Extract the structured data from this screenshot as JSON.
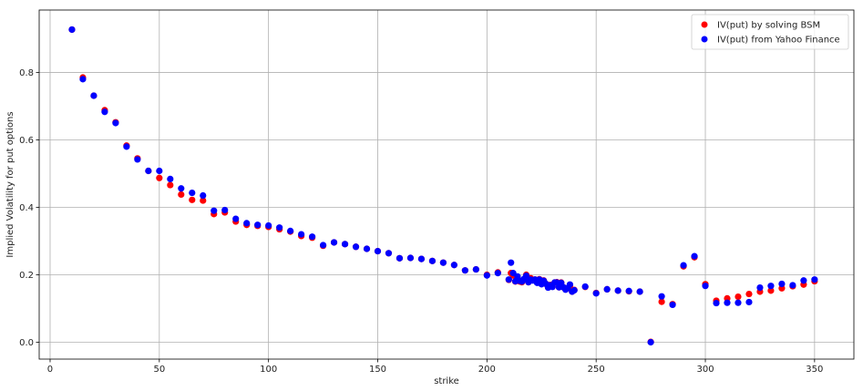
{
  "chart_data": {
    "type": "scatter",
    "title": "",
    "xlabel": "strike",
    "ylabel": "Implied Volatility for put options",
    "xlim": [
      -5,
      368
    ],
    "ylim": [
      -0.05,
      0.985
    ],
    "xticks": [
      0,
      50,
      100,
      150,
      200,
      250,
      300,
      350
    ],
    "yticks": [
      0.0,
      0.2,
      0.4,
      0.6,
      0.8
    ],
    "ytick_labels": [
      "0.0",
      "0.2",
      "0.4",
      "0.6",
      "0.8"
    ],
    "grid": true,
    "legend_position": "top-right",
    "series": [
      {
        "name": "IV(put) by solving BSM",
        "color": "#ff0000",
        "x": [
          10,
          15,
          20,
          25,
          30,
          35,
          40,
          45,
          50,
          55,
          60,
          65,
          70,
          75,
          80,
          85,
          90,
          95,
          100,
          105,
          110,
          115,
          120,
          125,
          130,
          135,
          140,
          145,
          150,
          155,
          160,
          165,
          170,
          175,
          180,
          185,
          190,
          195,
          200,
          205,
          210,
          211,
          212,
          213,
          214,
          215,
          216,
          217,
          218,
          219,
          220,
          221,
          222,
          223,
          224,
          225,
          226,
          227,
          228,
          229,
          230,
          231,
          232,
          233,
          234,
          235,
          236,
          237,
          238,
          239,
          240,
          245,
          250,
          255,
          260,
          265,
          270,
          275,
          280,
          285,
          290,
          295,
          300,
          305,
          310,
          315,
          320,
          325,
          330,
          335,
          340,
          345,
          350
        ],
        "y": [
          0.927,
          0.785,
          0.731,
          0.688,
          0.652,
          0.583,
          0.545,
          0.508,
          0.487,
          0.466,
          0.438,
          0.422,
          0.42,
          0.38,
          0.385,
          0.358,
          0.348,
          0.345,
          0.342,
          0.335,
          0.328,
          0.315,
          0.31,
          0.286,
          0.296,
          0.291,
          0.283,
          0.277,
          0.27,
          0.264,
          0.249,
          0.25,
          0.247,
          0.241,
          0.236,
          0.229,
          0.213,
          0.216,
          0.2,
          0.207,
          0.185,
          0.205,
          0.198,
          0.18,
          0.193,
          0.18,
          0.178,
          0.186,
          0.2,
          0.178,
          0.19,
          0.184,
          0.186,
          0.177,
          0.187,
          0.173,
          0.183,
          0.173,
          0.163,
          0.17,
          0.165,
          0.177,
          0.178,
          0.163,
          0.177,
          0.163,
          0.157,
          0.16,
          0.168,
          0.15,
          0.155,
          0.164,
          0.146,
          0.157,
          0.153,
          0.151,
          0.15,
          0.001,
          0.12,
          0.113,
          0.225,
          0.252,
          0.172,
          0.123,
          0.13,
          0.135,
          0.143,
          0.15,
          0.153,
          0.16,
          0.166,
          0.171,
          0.181
        ]
      },
      {
        "name": "IV(put) from Yahoo Finance",
        "color": "#0000ff",
        "x": [
          10,
          15,
          20,
          25,
          30,
          35,
          40,
          45,
          50,
          55,
          60,
          65,
          70,
          75,
          80,
          85,
          90,
          95,
          100,
          105,
          110,
          115,
          120,
          125,
          130,
          135,
          140,
          145,
          150,
          155,
          160,
          165,
          170,
          175,
          180,
          185,
          190,
          195,
          200,
          205,
          210,
          211,
          212,
          213,
          214,
          215,
          216,
          217,
          218,
          219,
          220,
          221,
          222,
          223,
          224,
          225,
          226,
          227,
          228,
          229,
          230,
          231,
          232,
          233,
          234,
          235,
          236,
          237,
          238,
          239,
          240,
          245,
          250,
          255,
          260,
          265,
          270,
          275,
          280,
          285,
          290,
          295,
          300,
          305,
          310,
          315,
          320,
          325,
          330,
          335,
          340,
          345,
          350
        ],
        "y": [
          0.927,
          0.78,
          0.731,
          0.683,
          0.65,
          0.58,
          0.542,
          0.508,
          0.508,
          0.484,
          0.456,
          0.443,
          0.435,
          0.39,
          0.392,
          0.366,
          0.353,
          0.348,
          0.346,
          0.34,
          0.33,
          0.32,
          0.313,
          0.288,
          0.296,
          0.291,
          0.283,
          0.277,
          0.27,
          0.264,
          0.249,
          0.25,
          0.247,
          0.241,
          0.236,
          0.229,
          0.213,
          0.216,
          0.198,
          0.205,
          0.186,
          0.236,
          0.205,
          0.181,
          0.195,
          0.182,
          0.18,
          0.188,
          0.197,
          0.178,
          0.186,
          0.183,
          0.186,
          0.176,
          0.186,
          0.172,
          0.182,
          0.173,
          0.162,
          0.169,
          0.164,
          0.177,
          0.177,
          0.163,
          0.176,
          0.163,
          0.156,
          0.161,
          0.171,
          0.15,
          0.154,
          0.165,
          0.145,
          0.157,
          0.153,
          0.152,
          0.15,
          0.0,
          0.136,
          0.111,
          0.228,
          0.255,
          0.167,
          0.116,
          0.117,
          0.117,
          0.119,
          0.162,
          0.167,
          0.173,
          0.169,
          0.183,
          0.186
        ]
      }
    ]
  }
}
